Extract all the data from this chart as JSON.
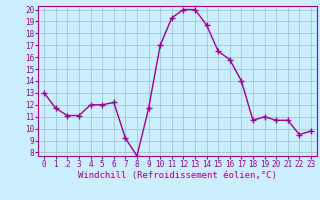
{
  "x": [
    0,
    1,
    2,
    3,
    4,
    5,
    6,
    7,
    8,
    9,
    10,
    11,
    12,
    13,
    14,
    15,
    16,
    17,
    18,
    19,
    20,
    21,
    22,
    23
  ],
  "y": [
    13.0,
    11.7,
    11.1,
    11.1,
    12.0,
    12.0,
    12.2,
    9.2,
    7.7,
    11.7,
    17.0,
    19.3,
    20.0,
    20.0,
    18.7,
    16.5,
    15.8,
    14.0,
    10.7,
    11.0,
    10.7,
    10.7,
    9.5,
    9.8
  ],
  "line_color": "#990099",
  "marker": "+",
  "marker_size": 4,
  "linewidth": 1.0,
  "markeredgewidth": 1.0,
  "xlabel": "Windchill (Refroidissement éolien,°C)",
  "xlim_lo": -0.5,
  "xlim_hi": 23.5,
  "ylim_lo": 7.7,
  "ylim_hi": 20.3,
  "yticks": [
    8,
    9,
    10,
    11,
    12,
    13,
    14,
    15,
    16,
    17,
    18,
    19,
    20
  ],
  "xticks": [
    0,
    1,
    2,
    3,
    4,
    5,
    6,
    7,
    8,
    9,
    10,
    11,
    12,
    13,
    14,
    15,
    16,
    17,
    18,
    19,
    20,
    21,
    22,
    23
  ],
  "bg_color": "#cceeff",
  "grid_color": "#99cccc",
  "line_and_text_color": "#990099",
  "tick_labelsize": 5.5,
  "xlabel_fontsize": 6.5,
  "font_family": "monospace"
}
